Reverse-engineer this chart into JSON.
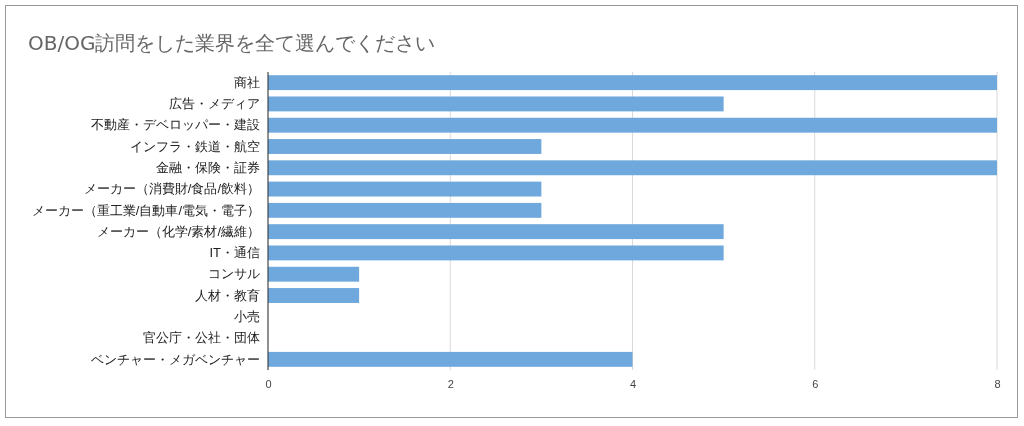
{
  "chart_data": {
    "type": "bar",
    "orientation": "horizontal",
    "title": "OB/OG訪問をした業界を全て選んでください",
    "categories": [
      "商社",
      "広告・メディア",
      "不動産・デベロッパー・建設",
      "インフラ・鉄道・航空",
      "金融・保険・証券",
      "メーカー（消費財/食品/飲料）",
      "メーカー（重工業/自動車/電気・電子）",
      "メーカー（化学/素材/繊維）",
      "IT・通信",
      "コンサル",
      "人材・教育",
      "小売",
      "官公庁・公社・団体",
      "ベンチャー・メガベンチャー"
    ],
    "values": [
      8,
      5,
      8,
      3,
      8,
      3,
      3,
      5,
      5,
      1,
      1,
      0,
      0,
      4
    ],
    "color": "#6fa8dc",
    "xlim": [
      0,
      8
    ],
    "xticks": [
      0,
      2,
      4,
      6,
      8
    ],
    "grid": "x"
  }
}
